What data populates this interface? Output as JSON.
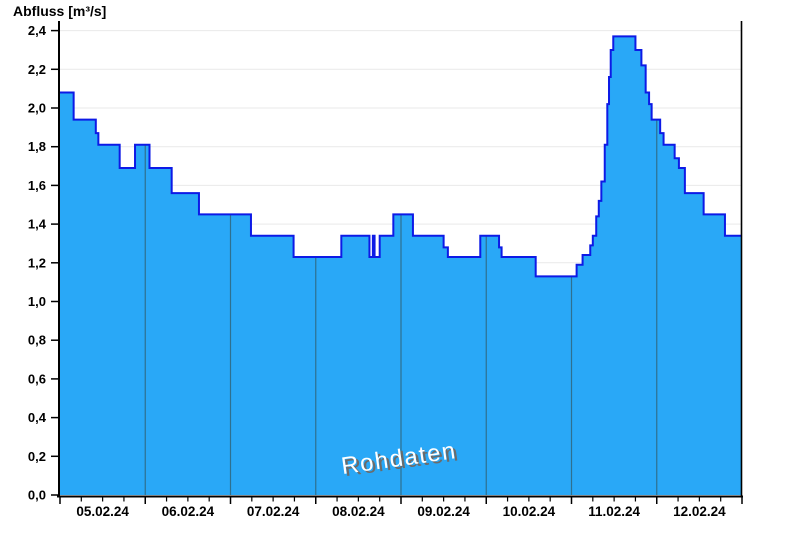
{
  "chart_data": {
    "type": "area",
    "title": "Abfluss [m³/s]",
    "ylabel": "Abfluss [m³/s]",
    "watermark": "Rohdaten",
    "unit": "m³/s",
    "y_axis": {
      "min": 0.0,
      "max": 2.4,
      "tick_step": 0.2,
      "tick_labels": [
        "0,0",
        "0,2",
        "0,4",
        "0,6",
        "0,8",
        "1,0",
        "1,2",
        "1,4",
        "1,6",
        "1,8",
        "2,0",
        "2,2",
        "2,4"
      ]
    },
    "x_axis": {
      "span_days": 8,
      "day_labels": [
        "05.02.24",
        "06.02.24",
        "07.02.24",
        "08.02.24",
        "09.02.24",
        "10.02.24",
        "11.02.24",
        "12.02.24"
      ],
      "minor_ticks_per_day": 4,
      "day_boundary_gridlines": true
    },
    "grid": {
      "horizontal": true,
      "vertical_inside_area_only": true
    },
    "series": [
      {
        "name": "Rohdaten",
        "end_day": 8.0,
        "steps_day_value": [
          [
            0.0,
            2.08
          ],
          [
            0.16,
            1.94
          ],
          [
            0.42,
            1.87
          ],
          [
            0.45,
            1.81
          ],
          [
            0.7,
            1.69
          ],
          [
            0.88,
            1.81
          ],
          [
            1.05,
            1.69
          ],
          [
            1.31,
            1.56
          ],
          [
            1.63,
            1.45
          ],
          [
            2.24,
            1.34
          ],
          [
            2.74,
            1.23
          ],
          [
            3.3,
            1.34
          ],
          [
            3.63,
            1.23
          ],
          [
            3.67,
            1.34
          ],
          [
            3.69,
            1.23
          ],
          [
            3.75,
            1.34
          ],
          [
            3.91,
            1.45
          ],
          [
            4.14,
            1.34
          ],
          [
            4.5,
            1.28
          ],
          [
            4.55,
            1.23
          ],
          [
            4.93,
            1.34
          ],
          [
            5.15,
            1.28
          ],
          [
            5.18,
            1.23
          ],
          [
            5.58,
            1.13
          ],
          [
            6.06,
            1.19
          ],
          [
            6.13,
            1.24
          ],
          [
            6.22,
            1.29
          ],
          [
            6.25,
            1.34
          ],
          [
            6.29,
            1.44
          ],
          [
            6.32,
            1.52
          ],
          [
            6.35,
            1.62
          ],
          [
            6.39,
            1.81
          ],
          [
            6.42,
            2.02
          ],
          [
            6.44,
            2.16
          ],
          [
            6.46,
            2.3
          ],
          [
            6.49,
            2.37
          ],
          [
            6.75,
            2.3
          ],
          [
            6.82,
            2.22
          ],
          [
            6.87,
            2.08
          ],
          [
            6.91,
            2.02
          ],
          [
            6.94,
            1.94
          ],
          [
            7.04,
            1.87
          ],
          [
            7.08,
            1.81
          ],
          [
            7.21,
            1.74
          ],
          [
            7.26,
            1.69
          ],
          [
            7.33,
            1.56
          ],
          [
            7.55,
            1.45
          ],
          [
            7.8,
            1.34
          ]
        ]
      }
    ],
    "colors": {
      "fill": "#29A8F7",
      "outline": "#0D1AE6",
      "grid": "#E9E9E9",
      "day_line": "#2E708F",
      "axis": "#000000",
      "text": "#000000",
      "watermark_text": "#FFFFFF",
      "watermark_shadow": "#6B6B6B",
      "background": "#FFFFFF"
    }
  }
}
